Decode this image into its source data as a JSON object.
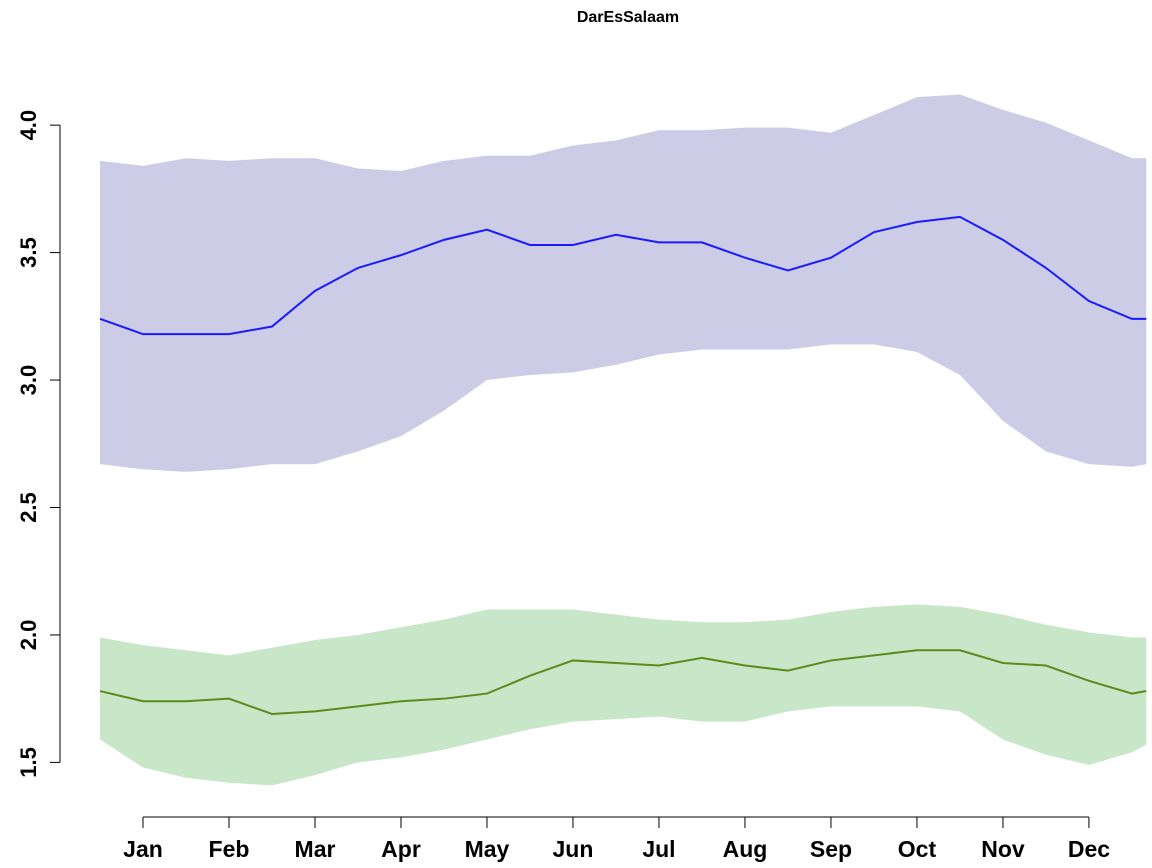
{
  "chart_data": {
    "type": "line",
    "title": "DarEsSalaam",
    "x": [
      0,
      15,
      30,
      45,
      60,
      75,
      90,
      105,
      120,
      135,
      150,
      165,
      180,
      195,
      210,
      225,
      240,
      255,
      270,
      285,
      300,
      315,
      330,
      345,
      360,
      365
    ],
    "xlim": [
      0,
      367
    ],
    "xticks": [
      {
        "value": 15,
        "label": "Jan"
      },
      {
        "value": 45,
        "label": "Feb"
      },
      {
        "value": 75,
        "label": "Mar"
      },
      {
        "value": 105,
        "label": "Apr"
      },
      {
        "value": 135,
        "label": "May"
      },
      {
        "value": 165,
        "label": "Jun"
      },
      {
        "value": 195,
        "label": "Jul"
      },
      {
        "value": 225,
        "label": "Aug"
      },
      {
        "value": 255,
        "label": "Sep"
      },
      {
        "value": 285,
        "label": "Oct"
      },
      {
        "value": 315,
        "label": "Nov"
      },
      {
        "value": 345,
        "label": "Dec"
      }
    ],
    "ylim": [
      1.38,
      4.13
    ],
    "yticks": [
      1.5,
      {
        "value": 2,
        "label": "2.0"
      },
      2.5,
      {
        "value": 3,
        "label": "3.0"
      },
      3.5,
      {
        "value": 4,
        "label": "4.0"
      }
    ],
    "series": [
      {
        "color": "#1a1aff",
        "band_color": "#cccce6",
        "values": [
          3.24,
          3.18,
          3.18,
          3.18,
          3.21,
          3.35,
          3.44,
          3.49,
          3.55,
          3.59,
          3.53,
          3.53,
          3.57,
          3.54,
          3.54,
          3.48,
          3.43,
          3.48,
          3.58,
          3.62,
          3.64,
          3.55,
          3.44,
          3.31,
          3.24,
          3.24
        ],
        "upper": [
          3.86,
          3.84,
          3.87,
          3.86,
          3.87,
          3.87,
          3.83,
          3.82,
          3.86,
          3.88,
          3.88,
          3.92,
          3.94,
          3.98,
          3.98,
          3.99,
          3.99,
          3.97,
          4.04,
          4.11,
          4.12,
          4.06,
          4.01,
          3.94,
          3.87,
          3.87
        ],
        "lower": [
          2.67,
          2.65,
          2.64,
          2.65,
          2.67,
          2.67,
          2.72,
          2.78,
          2.88,
          3.0,
          3.02,
          3.03,
          3.06,
          3.1,
          3.12,
          3.12,
          3.12,
          3.14,
          3.14,
          3.11,
          3.02,
          2.84,
          2.72,
          2.67,
          2.66,
          2.67
        ]
      },
      {
        "color": "#5a8c1e",
        "band_color": "#c8e6c8",
        "values": [
          1.78,
          1.74,
          1.74,
          1.75,
          1.69,
          1.7,
          1.72,
          1.74,
          1.75,
          1.77,
          1.84,
          1.9,
          1.89,
          1.88,
          1.91,
          1.88,
          1.86,
          1.9,
          1.92,
          1.94,
          1.94,
          1.89,
          1.88,
          1.82,
          1.77,
          1.78
        ],
        "upper": [
          1.99,
          1.96,
          1.94,
          1.92,
          1.95,
          1.98,
          2.0,
          2.03,
          2.06,
          2.1,
          2.1,
          2.1,
          2.08,
          2.06,
          2.05,
          2.05,
          2.06,
          2.09,
          2.11,
          2.12,
          2.11,
          2.08,
          2.04,
          2.01,
          1.99,
          1.99
        ],
        "lower": [
          1.59,
          1.48,
          1.44,
          1.42,
          1.41,
          1.45,
          1.5,
          1.52,
          1.55,
          1.59,
          1.63,
          1.66,
          1.67,
          1.68,
          1.66,
          1.66,
          1.7,
          1.72,
          1.72,
          1.72,
          1.7,
          1.59,
          1.53,
          1.49,
          1.54,
          1.57
        ]
      }
    ]
  }
}
